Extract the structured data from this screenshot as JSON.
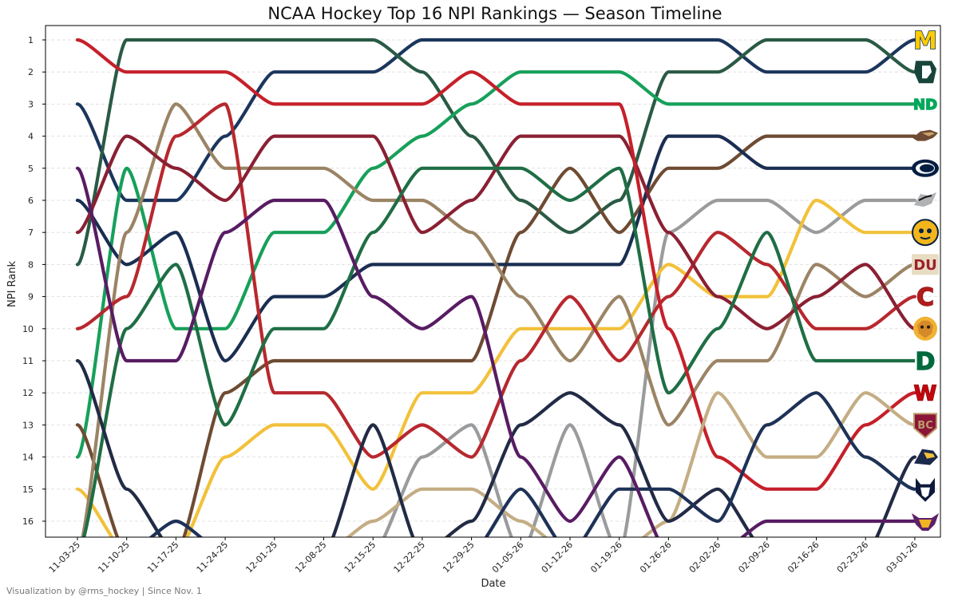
{
  "credit": "Visualization by @rms_hockey | Since Nov. 1",
  "chart_data": {
    "type": "line",
    "title": "NCAA Hockey Top 16 NPI Rankings — Season Timeline",
    "xlabel": "Date",
    "ylabel": "NPI Rank",
    "x": [
      "11-03-25",
      "11-10-25",
      "11-17-25",
      "11-24-25",
      "12-01-25",
      "12-08-25",
      "12-15-25",
      "12-22-25",
      "12-29-25",
      "01-05-26",
      "01-12-26",
      "01-19-26",
      "01-26-26",
      "02-02-26",
      "02-09-26",
      "02-16-26",
      "02-23-26",
      "03-01-26"
    ],
    "y_ticks": [
      1,
      2,
      3,
      4,
      5,
      6,
      7,
      8,
      9,
      10,
      11,
      12,
      13,
      14,
      15,
      16
    ],
    "ylim": [
      16.5,
      0.5
    ],
    "y_inverted": true,
    "grid": "horizontal dashed",
    "series": [
      {
        "logo": "M",
        "color": "#1b365d",
        "values": [
          3,
          6,
          6,
          4,
          2,
          2,
          2,
          1,
          1,
          1,
          1,
          1,
          1,
          1,
          2,
          2,
          2,
          1
        ]
      },
      {
        "logo": "S",
        "color": "#2a5a45",
        "values": [
          8,
          1,
          1,
          1,
          1,
          1,
          1,
          2,
          4,
          6,
          7,
          6,
          2,
          2,
          1,
          1,
          1,
          2
        ]
      },
      {
        "logo": "ND",
        "color": "#17a05a",
        "values": [
          14,
          5,
          10,
          10,
          7,
          7,
          5,
          4,
          3,
          2,
          2,
          2,
          3,
          3,
          3,
          3,
          3,
          3
        ]
      },
      {
        "logo": "bronco",
        "color": "#6e4b32",
        "values": [
          13,
          17,
          17,
          12,
          11,
          11,
          11,
          11,
          11,
          7,
          5,
          7,
          5,
          5,
          4,
          4,
          4,
          4
        ]
      },
      {
        "logo": "PSU",
        "color": "#1a2e52",
        "values": [
          6,
          8,
          7,
          11,
          9,
          9,
          8,
          8,
          8,
          8,
          8,
          8,
          4,
          4,
          5,
          5,
          5,
          5
        ]
      },
      {
        "logo": "husky",
        "color": "#9a9b9d",
        "values": [
          17,
          17,
          17,
          17,
          17,
          17,
          17,
          14,
          13,
          17,
          13,
          17,
          7,
          6,
          6,
          7,
          6,
          6
        ]
      },
      {
        "logo": "Q",
        "color": "#f2c13a",
        "values": [
          15,
          17,
          17,
          14,
          13,
          13,
          15,
          12,
          12,
          10,
          10,
          10,
          8,
          9,
          9,
          6,
          7,
          7
        ]
      },
      {
        "logo": "DU",
        "color": "#9b8465",
        "values": [
          17,
          7,
          3,
          5,
          5,
          5,
          6,
          6,
          7,
          9,
          11,
          9,
          13,
          11,
          11,
          8,
          9,
          8
        ]
      },
      {
        "logo": "C",
        "color": "#b7282e",
        "values": [
          10,
          9,
          4,
          3,
          12,
          12,
          14,
          13,
          14,
          11,
          9,
          11,
          9,
          7,
          8,
          10,
          10,
          9
        ]
      },
      {
        "logo": "bulldog",
        "color": "#8a2033",
        "values": [
          7,
          4,
          5,
          6,
          4,
          4,
          4,
          7,
          6,
          4,
          4,
          4,
          7,
          9,
          10,
          9,
          8,
          10
        ]
      },
      {
        "logo": "D",
        "color": "#1f6e45",
        "values": [
          17,
          10,
          8,
          13,
          10,
          10,
          7,
          5,
          5,
          5,
          6,
          5,
          12,
          10,
          7,
          11,
          11,
          11
        ]
      },
      {
        "logo": "W",
        "color": "#c5202a",
        "values": [
          1,
          2,
          2,
          2,
          3,
          3,
          3,
          3,
          2,
          3,
          3,
          3,
          10,
          14,
          15,
          15,
          13,
          12
        ]
      },
      {
        "logo": "BC",
        "color": "#c4ad84",
        "values": [
          17,
          17,
          17,
          17,
          17,
          17,
          16,
          15,
          15,
          16,
          17,
          17,
          16,
          12,
          14,
          14,
          12,
          13
        ]
      },
      {
        "logo": "yellowjacket",
        "color": "#222b45",
        "values": [
          11,
          15,
          17,
          17,
          17,
          17,
          13,
          17,
          16,
          13,
          12,
          13,
          16,
          15,
          17,
          17,
          17,
          14
        ]
      },
      {
        "logo": "uconn",
        "color": "#1e3257",
        "values": [
          17,
          17,
          16,
          17,
          17,
          17,
          17,
          17,
          17,
          15,
          17,
          15,
          15,
          16,
          13,
          12,
          14,
          15
        ]
      },
      {
        "logo": "bull",
        "color": "#581c63",
        "values": [
          5,
          11,
          11,
          7,
          6,
          6,
          9,
          10,
          9,
          14,
          16,
          14,
          17,
          17,
          16,
          16,
          16,
          16
        ]
      }
    ]
  }
}
